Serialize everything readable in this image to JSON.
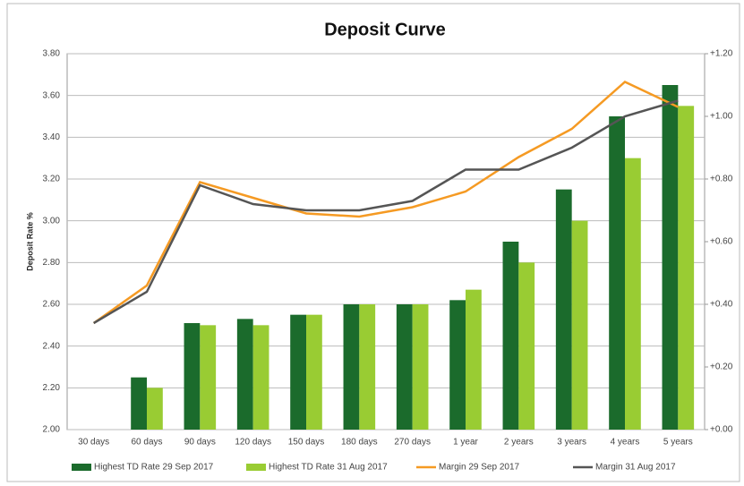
{
  "chart_data": {
    "type": "bar",
    "title": "Deposit Curve",
    "ylabel": "Deposit Rate %",
    "categories": [
      "30 days",
      "60 days",
      "90 days",
      "120 days",
      "150 days",
      "180 days",
      "270 days",
      "1 year",
      "2 years",
      "3 years",
      "4 years",
      "5 years"
    ],
    "series": [
      {
        "name": "Highest TD Rate 29 Sep 2017",
        "type": "bar",
        "color": "#1b6b2c",
        "values": [
          null,
          2.25,
          2.51,
          2.53,
          2.55,
          2.6,
          2.6,
          2.62,
          2.9,
          3.15,
          3.5,
          3.65
        ]
      },
      {
        "name": "Highest TD Rate 31 Aug 2017",
        "type": "bar",
        "color": "#99cc33",
        "values": [
          null,
          2.2,
          2.5,
          2.5,
          2.55,
          2.6,
          2.6,
          2.67,
          2.8,
          3.0,
          3.3,
          3.55
        ]
      },
      {
        "name": "Margin 29 Sep 2017",
        "type": "line",
        "axis": "y2",
        "color": "#f59a23",
        "values": [
          0.34,
          0.46,
          0.79,
          0.74,
          0.69,
          0.68,
          0.71,
          0.76,
          0.87,
          0.96,
          1.11,
          1.03
        ]
      },
      {
        "name": "Margin 31 Aug 2017",
        "type": "line",
        "axis": "y2",
        "color": "#555555",
        "values": [
          0.34,
          0.44,
          0.78,
          0.72,
          0.7,
          0.7,
          0.73,
          0.83,
          0.83,
          0.9,
          1.0,
          1.05
        ]
      }
    ],
    "ylim": [
      2.0,
      3.8
    ],
    "yticks": [
      {
        "value": 2.0,
        "label": "2.00"
      },
      {
        "value": 2.2,
        "label": "2.20"
      },
      {
        "value": 2.4,
        "label": "2.40"
      },
      {
        "value": 2.6,
        "label": "2.60"
      },
      {
        "value": 2.8,
        "label": "2.80"
      },
      {
        "value": 3.0,
        "label": "3.00"
      },
      {
        "value": 3.2,
        "label": "3.20"
      },
      {
        "value": 3.4,
        "label": "3.40"
      },
      {
        "value": 3.6,
        "label": "3.60"
      },
      {
        "value": 3.8,
        "label": "3.80"
      }
    ],
    "y2lim": [
      0,
      1.2
    ],
    "y2ticks": [
      {
        "value": 0,
        "label": "+0.00"
      },
      {
        "value": 0.2,
        "label": "+0.20"
      },
      {
        "value": 0.4,
        "label": "+0.40"
      },
      {
        "value": 0.6,
        "label": "+0.60"
      },
      {
        "value": 0.8,
        "label": "+0.80"
      },
      {
        "value": 1.0,
        "label": "+1.00"
      },
      {
        "value": 1.2,
        "label": "+1.20"
      }
    ],
    "grid": true,
    "legend": "bottom"
  }
}
